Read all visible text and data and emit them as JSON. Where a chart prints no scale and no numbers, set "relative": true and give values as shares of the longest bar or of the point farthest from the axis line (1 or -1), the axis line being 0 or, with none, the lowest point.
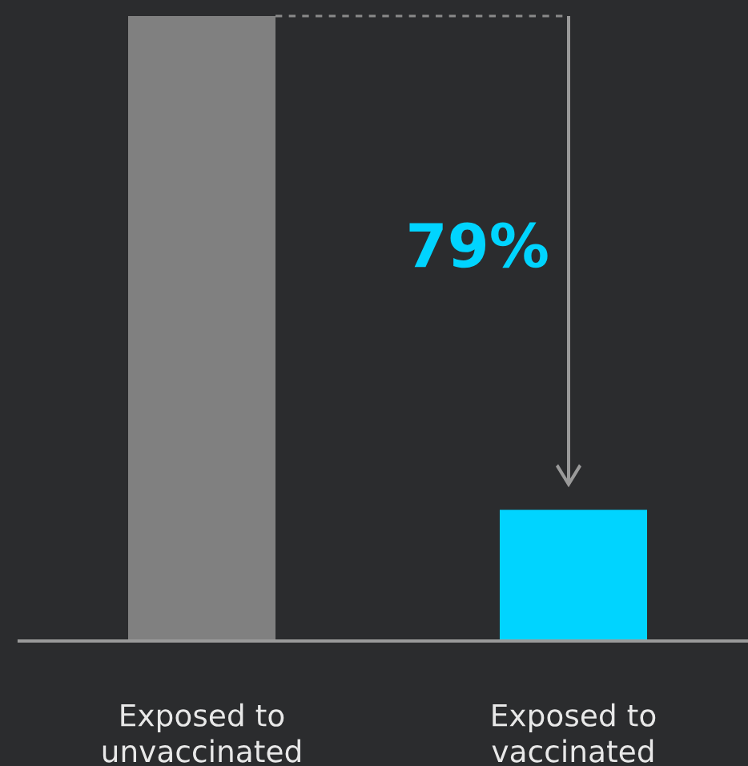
{
  "chart_data": {
    "type": "bar",
    "relative": true,
    "categories": [
      "Exposed to\nunvaccinated",
      "Exposed to\nvaccinated"
    ],
    "values": [
      1,
      0.21
    ],
    "colors": [
      "#808080",
      "#00d4ff"
    ],
    "annotations": [
      "79%"
    ],
    "grid": false,
    "legend": false
  }
}
